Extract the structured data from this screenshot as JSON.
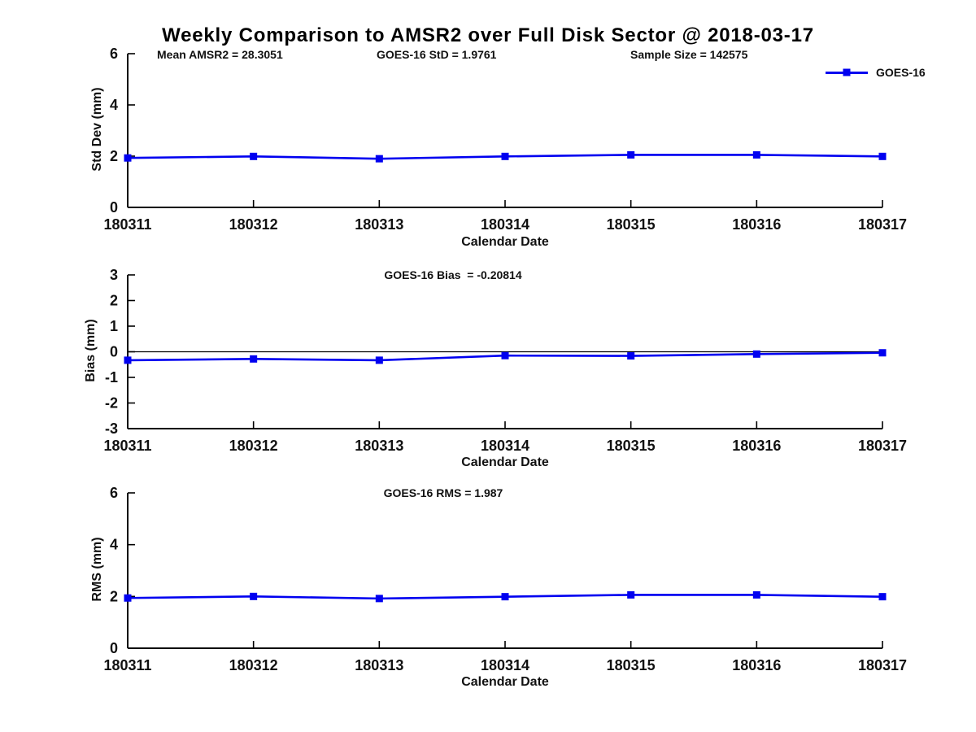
{
  "title": "Weekly Comparison to AMSR2 over Full Disk Sector @ 2018-03-17",
  "annotations": [
    "Mean AMSR2 = 28.3051",
    "GOES-16 StD = 1.9761",
    "Sample Size = 142575"
  ],
  "legend": {
    "label": "GOES-16",
    "position": "top-right",
    "color": "#0000f0"
  },
  "colors": {
    "line": "#0000f0",
    "axis": "#000000",
    "text": "#111111",
    "background": "#ffffff"
  },
  "chart_data": [
    {
      "type": "line",
      "title": "",
      "categories": [
        "180311",
        "180312",
        "180313",
        "180314",
        "180315",
        "180316",
        "180317"
      ],
      "series": [
        {
          "name": "GOES-16",
          "values": [
            1.93,
            1.99,
            1.9,
            1.99,
            2.05,
            2.05,
            1.99
          ]
        }
      ],
      "xlabel": "Calendar Date",
      "ylabel": "Std Dev (mm)",
      "ylim": [
        0,
        6
      ],
      "yticks": [
        0,
        2,
        4,
        6
      ],
      "grid": false,
      "zero_line": false,
      "marker": "square"
    },
    {
      "type": "line",
      "title": "GOES-16 Bias  = -0.20814",
      "categories": [
        "180311",
        "180312",
        "180313",
        "180314",
        "180315",
        "180316",
        "180317"
      ],
      "series": [
        {
          "name": "GOES-16",
          "values": [
            -0.33,
            -0.28,
            -0.33,
            -0.15,
            -0.16,
            -0.09,
            -0.04
          ]
        }
      ],
      "xlabel": "Calendar Date",
      "ylabel": "Bias (mm)",
      "ylim": [
        -3,
        3
      ],
      "yticks": [
        -3,
        -2,
        -1,
        0,
        1,
        2,
        3
      ],
      "grid": false,
      "zero_line": true,
      "marker": "square"
    },
    {
      "type": "line",
      "title": "GOES-16 RMS = 1.987",
      "categories": [
        "180311",
        "180312",
        "180313",
        "180314",
        "180315",
        "180316",
        "180317"
      ],
      "series": [
        {
          "name": "GOES-16",
          "values": [
            1.94,
            2.0,
            1.92,
            1.99,
            2.06,
            2.06,
            1.99
          ]
        }
      ],
      "xlabel": "Calendar Date",
      "ylabel": "RMS (mm)",
      "ylim": [
        0,
        6
      ],
      "yticks": [
        0,
        2,
        4,
        6
      ],
      "grid": false,
      "zero_line": false,
      "marker": "square"
    }
  ]
}
